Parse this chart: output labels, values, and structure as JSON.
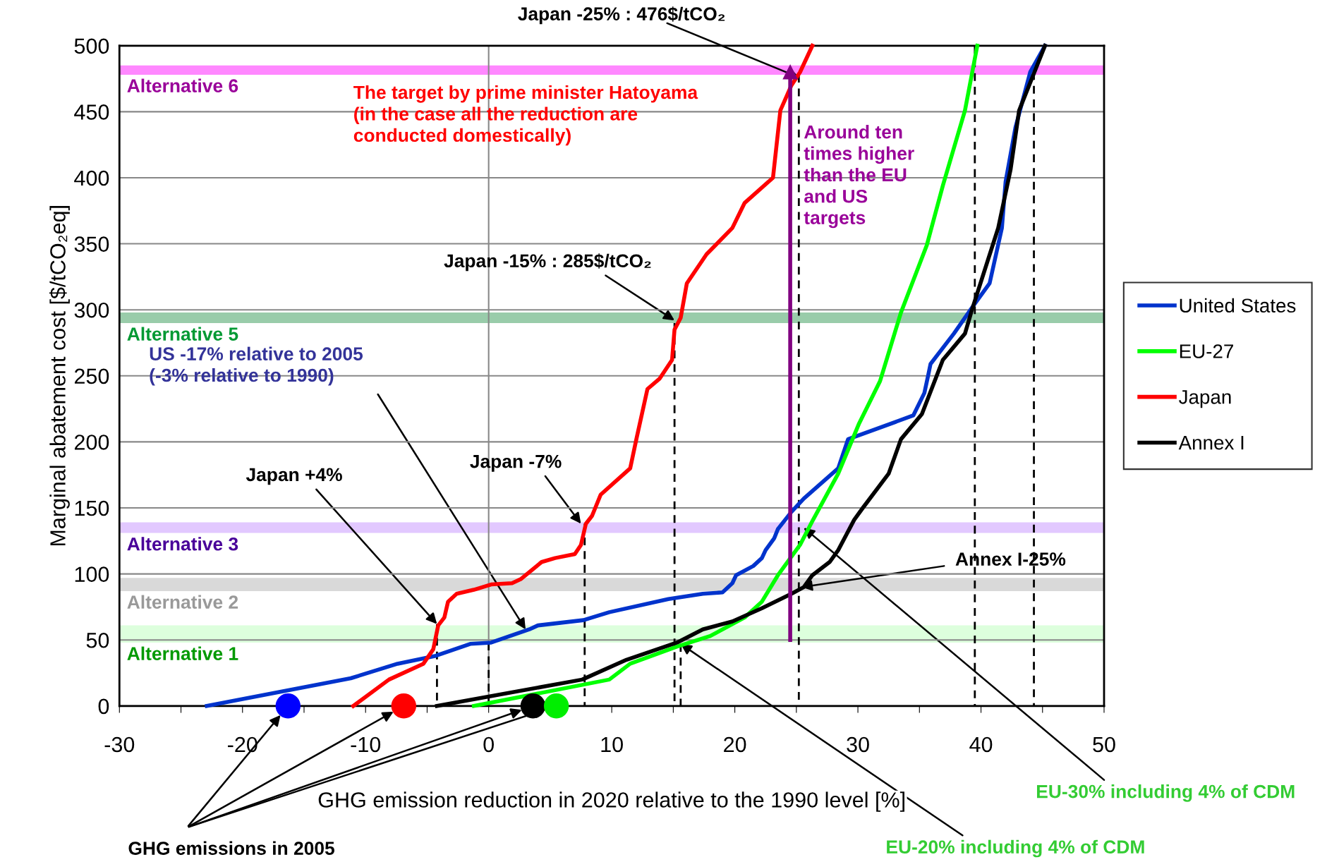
{
  "chart_data": {
    "type": "line",
    "xlabel": "GHG emission reduction in 2020 relative to the 1990 level [%]",
    "ylabel": "Marginal abatement cost [$/tCO₂eq]",
    "xlim": [
      -30,
      50
    ],
    "ylim": [
      0,
      500
    ],
    "xticks": [
      -30,
      {
        "value": -25,
        "label": null
      },
      -20,
      {
        "value": -15,
        "label": null
      },
      -10,
      {
        "value": -5,
        "label": null
      },
      0,
      {
        "value": 5,
        "label": null
      },
      10,
      {
        "value": 15,
        "label": null
      },
      20,
      {
        "value": 25,
        "label": null
      },
      30,
      {
        "value": 35,
        "label": null
      },
      40,
      {
        "value": 45,
        "label": null
      },
      50
    ],
    "yticks": [
      0,
      50,
      100,
      150,
      200,
      250,
      300,
      350,
      400,
      450,
      500
    ],
    "grid": "y",
    "legend": "right",
    "bands": [
      {
        "axis": "y",
        "from": 478,
        "to": 485,
        "label": "Alternative 6",
        "color": "#ff88ff"
      },
      {
        "axis": "y",
        "from": 290,
        "to": 298,
        "label": "Alternative 5",
        "color": "#99ccaa"
      },
      {
        "axis": "y",
        "from": 131,
        "to": 139,
        "label": "Alternative 3",
        "color": "#e2c8ff"
      },
      {
        "axis": "y",
        "from": 87,
        "to": 97,
        "label": "Alternative 2",
        "color": "#d9d9d9"
      },
      {
        "axis": "y",
        "from": 48,
        "to": 61,
        "label": "Alternative 1",
        "color": "#ddffdd"
      }
    ],
    "ref_lines": [
      {
        "axis": "x",
        "value": 0,
        "color": "#888888"
      }
    ],
    "series": [
      {
        "type": "line",
        "color": "#000000",
        "line_style": "dashed",
        "x": [
          -4.2,
          -4.2
        ],
        "values": [
          0,
          62
        ]
      },
      {
        "type": "line",
        "color": "#000000",
        "line_style": "dashed",
        "x": [
          0,
          0
        ],
        "values": [
          0,
          48
        ]
      },
      {
        "type": "line",
        "color": "#000000",
        "line_style": "dashed",
        "x": [
          7.8,
          7.8
        ],
        "values": [
          0,
          138
        ]
      },
      {
        "type": "line",
        "color": "#000000",
        "line_style": "dashed",
        "x": [
          15.1,
          15.1
        ],
        "values": [
          0,
          290
        ]
      },
      {
        "type": "line",
        "color": "#000000",
        "line_style": "dashed",
        "x": [
          15.6,
          15.6
        ],
        "values": [
          0,
          47
        ]
      },
      {
        "type": "line",
        "color": "#000000",
        "line_style": "dashed",
        "x": [
          25.2,
          25.2
        ],
        "values": [
          0,
          478
        ]
      },
      {
        "type": "line",
        "color": "#000000",
        "line_style": "dashed",
        "x": [
          39.5,
          39.5
        ],
        "values": [
          0,
          500
        ]
      },
      {
        "type": "line",
        "color": "#000000",
        "line_style": "dashed",
        "x": [
          44.3,
          44.3
        ],
        "values": [
          0,
          480
        ]
      },
      {
        "name": "United States",
        "color": "#0033cc",
        "x": [
          -22.9,
          -11.2,
          -7.4,
          -4.3,
          -1.5,
          0.2,
          3.3,
          4.0,
          7.7,
          9.8,
          14.6,
          17.4,
          19.0,
          19.8,
          20.1,
          21.5,
          22.2,
          22.5,
          23.2,
          23.5,
          24.6,
          25.6,
          28.4,
          29.2,
          34.5,
          35.4,
          35.7,
          35.9,
          37.8,
          39.3,
          40.7,
          41.7,
          42.0,
          42.8,
          44.0,
          45.2
        ],
        "values": [
          0,
          21,
          32,
          38,
          47,
          48,
          58,
          61,
          65,
          71,
          81,
          85,
          86,
          93,
          99,
          106,
          112,
          118,
          127,
          134,
          147,
          157,
          180,
          202,
          220,
          237,
          250,
          259,
          282,
          302,
          320,
          362,
          397,
          438,
          480,
          500
        ]
      },
      {
        "name": "EU-27",
        "color": "#00ff00",
        "x": [
          -1.2,
          9.8,
          11.5,
          15.3,
          18.0,
          20.8,
          22.2,
          23.5,
          25.3,
          26.3,
          28.4,
          30.1,
          31.8,
          33.5,
          35.6,
          36.9,
          38.7,
          39.7
        ],
        "values": [
          0,
          20,
          32,
          45,
          53,
          67,
          79,
          99,
          122,
          140,
          176,
          214,
          246,
          298,
          349,
          394,
          451,
          500
        ]
      },
      {
        "name": "Japan",
        "color": "#ff0000",
        "x": [
          -11.0,
          -8.1,
          -5.3,
          -4.5,
          -4.1,
          -3.6,
          -3.3,
          -2.6,
          -1.2,
          0.2,
          1.9,
          2.6,
          4.3,
          5.4,
          7.0,
          7.5,
          7.9,
          8.4,
          9.1,
          11.5,
          12.0,
          12.9,
          13.9,
          14.9,
          15.1,
          15.6,
          16.1,
          17.7,
          19.8,
          20.8,
          23.1,
          23.7,
          24.6,
          25.3,
          26.3
        ],
        "values": [
          0,
          20,
          32,
          43,
          61,
          67,
          79,
          85,
          88,
          92,
          93,
          96,
          109,
          112,
          115,
          122,
          138,
          144,
          160,
          180,
          202,
          240,
          248,
          262,
          285,
          294,
          320,
          342,
          362,
          381,
          400,
          451,
          470,
          480,
          500
        ]
      },
      {
        "name": "Annex I",
        "color": "#000000",
        "x": [
          -4.2,
          7.6,
          11.2,
          15.3,
          17.4,
          19.8,
          22.2,
          24.6,
          25.6,
          26.3,
          27.7,
          28.4,
          29.7,
          30.4,
          32.5,
          33.5,
          35.2,
          36.9,
          38.7,
          39.3,
          41.4,
          42.4,
          43.1,
          45.2
        ],
        "values": [
          0,
          20,
          35,
          48,
          58,
          64,
          74,
          85,
          90,
          99,
          109,
          118,
          141,
          150,
          176,
          202,
          221,
          262,
          282,
          301,
          362,
          406,
          451,
          500
        ]
      },
      {
        "color": "#800080",
        "marker": "triangle",
        "x": [
          24.5,
          24.5
        ],
        "values": [
          50,
          480
        ]
      },
      {
        "type": "scatter",
        "marker": "circle",
        "colors": [
          "#0000ff",
          "#ff0000",
          "#000000",
          "#00ee00"
        ],
        "x": [
          -16.3,
          -6.9,
          3.6,
          5.5
        ],
        "values": [
          0,
          0,
          0,
          0
        ]
      }
    ],
    "annotations": [
      {
        "text": "Japan -25% : 476$/tCO₂",
        "x": 25.2,
        "y": 476
      },
      "The target by prime minister Hatoyama\n(in the case all the reduction are\nconducted domestically)",
      "Around ten\ntimes higher\nthan the EU\nand US\ntargets",
      {
        "text": "Japan -15% : 285$/tCO₂",
        "x": 15.1,
        "y": 292
      },
      {
        "text": "US -17% relative to 2005\n(-3% relative to 1990)",
        "x": 3.0,
        "y": 58
      },
      {
        "text": "Japan +4%",
        "x": -4.2,
        "y": 62
      },
      {
        "text": "Japan -7%",
        "x": 7.5,
        "y": 138
      },
      {
        "text": "Annex I-25%",
        "x": 25.4,
        "y": 90
      },
      {
        "text": "EU-30% including 4% of CDM",
        "x": 25.6,
        "y": 135
      },
      {
        "text": "EU-20% including 4% of CDM",
        "x": 15.6,
        "y": 47
      },
      "GHG emissions in 2005"
    ]
  }
}
